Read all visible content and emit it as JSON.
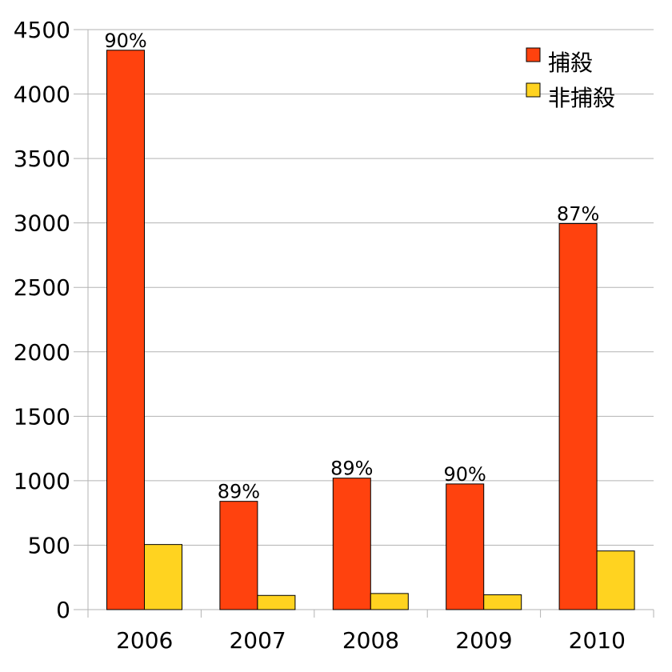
{
  "chart_data": {
    "type": "bar",
    "categories": [
      "2006",
      "2007",
      "2008",
      "2009",
      "2010"
    ],
    "series": [
      {
        "name": "捕殺",
        "color": "#ff420e",
        "values": [
          4340,
          840,
          1020,
          975,
          2995
        ]
      },
      {
        "name": "非捕殺",
        "color": "#ffd320",
        "values": [
          505,
          110,
          125,
          115,
          455
        ]
      }
    ],
    "data_labels": [
      "90%",
      "89%",
      "89%",
      "90%",
      "87%"
    ],
    "y_ticks": [
      "0",
      "500",
      "1000",
      "1500",
      "2000",
      "2500",
      "3000",
      "3500",
      "4000",
      "4500"
    ],
    "ylim": [
      0,
      4500
    ],
    "grid": true,
    "legend_position": "top-right"
  }
}
